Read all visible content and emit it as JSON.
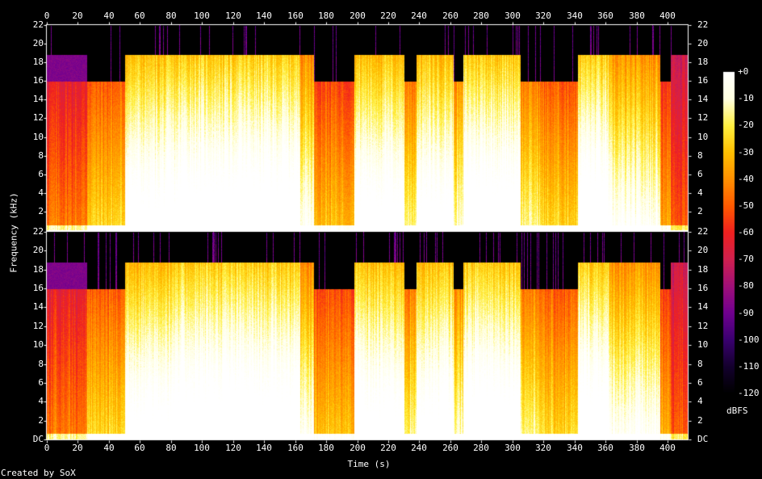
{
  "chart_data": {
    "type": "heatmap",
    "title": "",
    "xlabel": "Time (s)",
    "ylabel": "Frequency (kHz)",
    "x_ticks": [
      0,
      20,
      40,
      60,
      80,
      100,
      120,
      140,
      160,
      180,
      200,
      220,
      240,
      260,
      280,
      300,
      320,
      340,
      360,
      380,
      400
    ],
    "xlim": [
      0,
      413
    ],
    "channels": [
      {
        "y_ticks": [
          "22",
          "20",
          "18",
          "16",
          "14",
          "12",
          "10",
          "8",
          "6",
          "4",
          "2"
        ],
        "ylim_khz": [
          0,
          22
        ]
      },
      {
        "y_ticks": [
          "22",
          "20",
          "18",
          "16",
          "14",
          "12",
          "10",
          "8",
          "6",
          "4",
          "2",
          "DC"
        ],
        "ylim_khz": [
          0,
          22
        ]
      }
    ],
    "colorbar": {
      "unit": "dBFS",
      "ticks": [
        "+0",
        "-10",
        "-20",
        "-30",
        "-40",
        "-50",
        "-60",
        "-70",
        "-80",
        "-90",
        "-100",
        "-110",
        "-120"
      ],
      "range_db": [
        -120,
        0
      ]
    },
    "palette": [
      "#000000",
      "#14002e",
      "#3a0070",
      "#700090",
      "#a0107a",
      "#d02050",
      "#f02020",
      "#ff5a00",
      "#ff9000",
      "#ffc000",
      "#fff040",
      "#ffffe0",
      "#ffffff"
    ],
    "segments": [
      {
        "t": [
          0,
          26
        ],
        "cutoff_khz": 16,
        "peak_khz": 18.8,
        "loudness": 0.25
      },
      {
        "t": [
          26,
          50
        ],
        "cutoff_khz": 16,
        "peak_khz": 16,
        "loudness": 0.45
      },
      {
        "t": [
          50,
          85
        ],
        "cutoff_khz": 18.8,
        "peak_khz": 18.8,
        "loudness": 0.85
      },
      {
        "t": [
          85,
          123
        ],
        "cutoff_khz": 18.8,
        "peak_khz": 18.8,
        "loudness": 0.9
      },
      {
        "t": [
          123,
          163
        ],
        "cutoff_khz": 18.8,
        "peak_khz": 18.8,
        "loudness": 0.9
      },
      {
        "t": [
          163,
          172
        ],
        "cutoff_khz": 18.8,
        "peak_khz": 18.8,
        "loudness": 0.7
      },
      {
        "t": [
          172,
          198
        ],
        "cutoff_khz": 16,
        "peak_khz": 16,
        "loudness": 0.4
      },
      {
        "t": [
          198,
          230
        ],
        "cutoff_khz": 18.8,
        "peak_khz": 18.8,
        "loudness": 0.85
      },
      {
        "t": [
          230,
          238
        ],
        "cutoff_khz": 16,
        "peak_khz": 16,
        "loudness": 0.55
      },
      {
        "t": [
          238,
          262
        ],
        "cutoff_khz": 18.8,
        "peak_khz": 18.8,
        "loudness": 0.85
      },
      {
        "t": [
          262,
          268
        ],
        "cutoff_khz": 16,
        "peak_khz": 16,
        "loudness": 0.6
      },
      {
        "t": [
          268,
          305
        ],
        "cutoff_khz": 18.8,
        "peak_khz": 18.8,
        "loudness": 0.9
      },
      {
        "t": [
          305,
          318
        ],
        "cutoff_khz": 16,
        "peak_khz": 16,
        "loudness": 0.55
      },
      {
        "t": [
          318,
          342
        ],
        "cutoff_khz": 16,
        "peak_khz": 16,
        "loudness": 0.45
      },
      {
        "t": [
          342,
          362
        ],
        "cutoff_khz": 18.8,
        "peak_khz": 18.8,
        "loudness": 0.9
      },
      {
        "t": [
          362,
          395
        ],
        "cutoff_khz": 18.8,
        "peak_khz": 18.8,
        "loudness": 0.7
      },
      {
        "t": [
          395,
          402
        ],
        "cutoff_khz": 16,
        "peak_khz": 16,
        "loudness": 0.35
      },
      {
        "t": [
          402,
          413
        ],
        "cutoff_khz": 18.8,
        "peak_khz": 18.8,
        "loudness": 0.2
      }
    ]
  },
  "footer": {
    "credit": "Created by SoX"
  }
}
